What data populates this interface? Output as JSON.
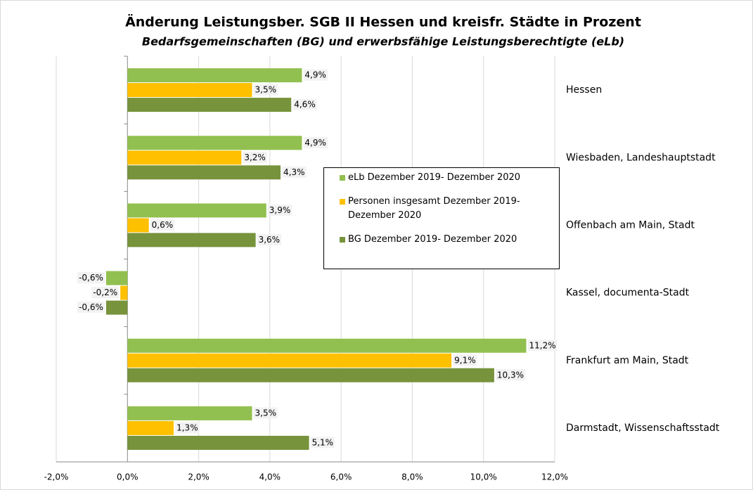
{
  "chart_data": {
    "type": "bar",
    "title": "Änderung Leistungsber. SGB II Hessen und kreisfr. Städte in Prozent",
    "subtitle": "Bedarfsgemeinschaften (BG) und erwerbsfähige Leistungsberechtigte (eLb)",
    "categories": [
      "Hessen",
      "Wiesbaden, Landeshauptstadt",
      "Offenbach am Main, Stadt",
      "Kassel, documenta-Stadt",
      "Frankfurt am Main, Stadt",
      "Darmstadt, Wissenschaftsstadt"
    ],
    "series": [
      {
        "name": "eLb Dezember 2019- Dezember 2020",
        "color": "#92c050",
        "values": [
          4.9,
          4.9,
          3.9,
          -0.6,
          11.2,
          3.5
        ],
        "value_labels": [
          "4,9%",
          "4,9%",
          "3,9%",
          "-0,6%",
          "11,2%",
          "3,5%"
        ]
      },
      {
        "name": "Personen insgesamt Dezember 2019- Dezember 2020",
        "color": "#ffc000",
        "values": [
          3.5,
          3.2,
          0.6,
          -0.2,
          9.1,
          1.3
        ],
        "value_labels": [
          "3,5%",
          "3,2%",
          "0,6%",
          "-0,2%",
          "9,1%",
          "1,3%"
        ]
      },
      {
        "name": "BG Dezember 2019- Dezember 2020",
        "color": "#77933c",
        "values": [
          4.6,
          4.3,
          3.6,
          -0.6,
          10.3,
          5.1
        ],
        "value_labels": [
          "4,6%",
          "4,3%",
          "3,6%",
          "-0,6%",
          "10,3%",
          "5,1%"
        ]
      }
    ],
    "xlim": [
      -2,
      12
    ],
    "xticks": [
      {
        "value": -2,
        "label": "-2,0%"
      },
      {
        "value": 0,
        "label": "0,0%"
      },
      {
        "value": 2,
        "label": "2,0%"
      },
      {
        "value": 4,
        "label": "4,0%"
      },
      {
        "value": 6,
        "label": "6,0%"
      },
      {
        "value": 8,
        "label": "8,0%"
      },
      {
        "value": 10,
        "label": "10,0%"
      },
      {
        "value": 12,
        "label": "12,0%"
      }
    ],
    "grid": true
  }
}
